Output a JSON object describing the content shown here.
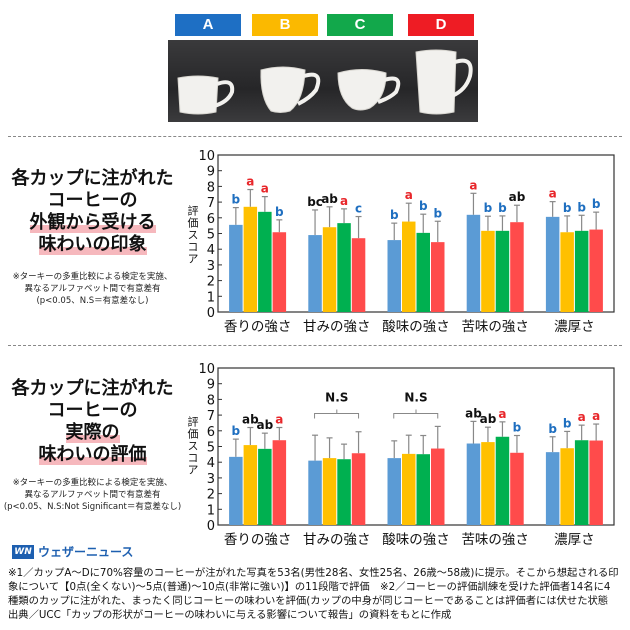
{
  "cups": [
    {
      "label": "A",
      "color": "#1e6fc4"
    },
    {
      "label": "B",
      "color": "#fbb900"
    },
    {
      "label": "C",
      "color": "#12a84b"
    },
    {
      "label": "D",
      "color": "#ee1c24"
    }
  ],
  "section1": {
    "title_lines": [
      "各カップに注がれた",
      "コーヒーの"
    ],
    "title_highlight_lines": [
      "外観から受ける",
      "味わいの印象"
    ],
    "note_lines": [
      "※ターキーの多重比較による検定を実施、",
      "異なるアルファベット間で有意差有",
      "(p<0.05、N.S＝有意差なし)"
    ]
  },
  "section2": {
    "title_lines": [
      "各カップに注がれた",
      "コーヒーの"
    ],
    "title_highlight_lines": [
      "実際の",
      "味わいの評価"
    ],
    "note_lines": [
      "※ターキーの多重比較による検定を実施、",
      "異なるアルファベット間で有意差有",
      "(p<0.05、N.S:Not Significant＝有意差なし)"
    ]
  },
  "chart_data": [
    {
      "type": "bar",
      "ylabel": "評価スコア",
      "ylim": [
        0,
        10
      ],
      "yticks": [
        0,
        1,
        2,
        3,
        4,
        5,
        6,
        7,
        8,
        9,
        10
      ],
      "categories": [
        "香りの強さ",
        "甘みの強さ",
        "酸味の強さ",
        "苦味の強さ",
        "濃厚さ"
      ],
      "series": [
        {
          "cup": "A",
          "color": "#5b9bd5",
          "values": [
            5.55,
            4.9,
            4.58,
            6.19,
            6.06
          ],
          "error_top": [
            6.65,
            6.5,
            5.66,
            7.56,
            7.03
          ],
          "letters": [
            "b",
            "bc",
            "b",
            "a",
            "a"
          ]
        },
        {
          "cup": "B",
          "color": "#ffc000",
          "values": [
            6.7,
            5.4,
            5.76,
            5.17,
            5.08
          ],
          "error_top": [
            7.8,
            6.7,
            6.93,
            6.1,
            6.12
          ],
          "letters": [
            "a",
            "ab",
            "a",
            "b",
            "b"
          ]
        },
        {
          "cup": "C",
          "color": "#00b050",
          "values": [
            6.38,
            5.66,
            5.04,
            5.17,
            5.17
          ],
          "error_top": [
            7.35,
            6.57,
            6.23,
            6.12,
            6.16
          ],
          "letters": [
            "a",
            "a",
            "b",
            "b",
            "b"
          ]
        },
        {
          "cup": "D",
          "color": "#ff4b4b",
          "values": [
            5.08,
            4.7,
            4.45,
            5.72,
            5.25
          ],
          "error_top": [
            5.87,
            6.08,
            5.78,
            6.8,
            6.36
          ],
          "letters": [
            "b",
            "c",
            "b",
            "ab",
            "b"
          ]
        }
      ],
      "group_annotations": [
        null,
        null,
        null,
        null,
        null
      ]
    },
    {
      "type": "bar",
      "ylabel": "評価スコア",
      "ylim": [
        0,
        10
      ],
      "yticks": [
        0,
        1,
        2,
        3,
        4,
        5,
        6,
        7,
        8,
        9,
        10
      ],
      "categories": [
        "香りの強さ",
        "甘みの強さ",
        "酸味の強さ",
        "苦味の強さ",
        "濃厚さ"
      ],
      "series": [
        {
          "cup": "A",
          "color": "#5b9bd5",
          "values": [
            4.34,
            4.1,
            4.26,
            5.19,
            4.64
          ],
          "error_top": [
            5.47,
            5.72,
            5.36,
            6.6,
            5.62
          ],
          "letters": [
            "b",
            null,
            null,
            "ab",
            "b"
          ]
        },
        {
          "cup": "B",
          "color": "#ffc000",
          "values": [
            5.09,
            4.26,
            4.53,
            5.28,
            4.89
          ],
          "error_top": [
            6.21,
            5.55,
            5.72,
            6.23,
            5.96
          ],
          "letters": [
            "ab",
            null,
            null,
            "ab",
            "b"
          ]
        },
        {
          "cup": "C",
          "color": "#00b050",
          "values": [
            4.85,
            4.19,
            4.51,
            5.62,
            5.4
          ],
          "error_top": [
            5.85,
            5.15,
            5.7,
            6.57,
            6.36
          ],
          "letters": [
            "ab",
            null,
            null,
            "a",
            "a"
          ]
        },
        {
          "cup": "D",
          "color": "#ff4b4b",
          "values": [
            5.4,
            4.57,
            4.87,
            4.6,
            5.38
          ],
          "error_top": [
            6.21,
            5.94,
            6.28,
            5.7,
            6.43
          ],
          "letters": [
            "a",
            null,
            null,
            "b",
            "a"
          ]
        }
      ],
      "group_annotations": [
        null,
        "N.S",
        "N.S",
        null,
        null
      ]
    }
  ],
  "letter_colors": {
    "a": "#e8262a",
    "b": "#1f6fc0",
    "c": "#1f6fc0",
    "ab": "#111111",
    "bc": "#111111"
  },
  "footer": {
    "logo_mark": "WN",
    "logo_text": "ウェザーニュース",
    "lines": [
      "※1／カップA〜Dに70%容量のコーヒーが注がれた写真を53名(男性28名、女性25名、26歳〜58歳)に提示。そこから想起される印",
      "象について【0点(全くない)〜5点(普通)〜10点(非常に強い)】の11段階で評価　※2／コーヒーの評価訓練を受けた評価者14名に4",
      "種類のカップに注がれた、まったく同じコーヒーの味わいを評価(カップの中身が同じコーヒーであることは評価者には伏せた状態",
      "出典／UCC「カップの形状がコーヒーの味わいに与える影響について報告」の資料をもとに作成"
    ]
  }
}
